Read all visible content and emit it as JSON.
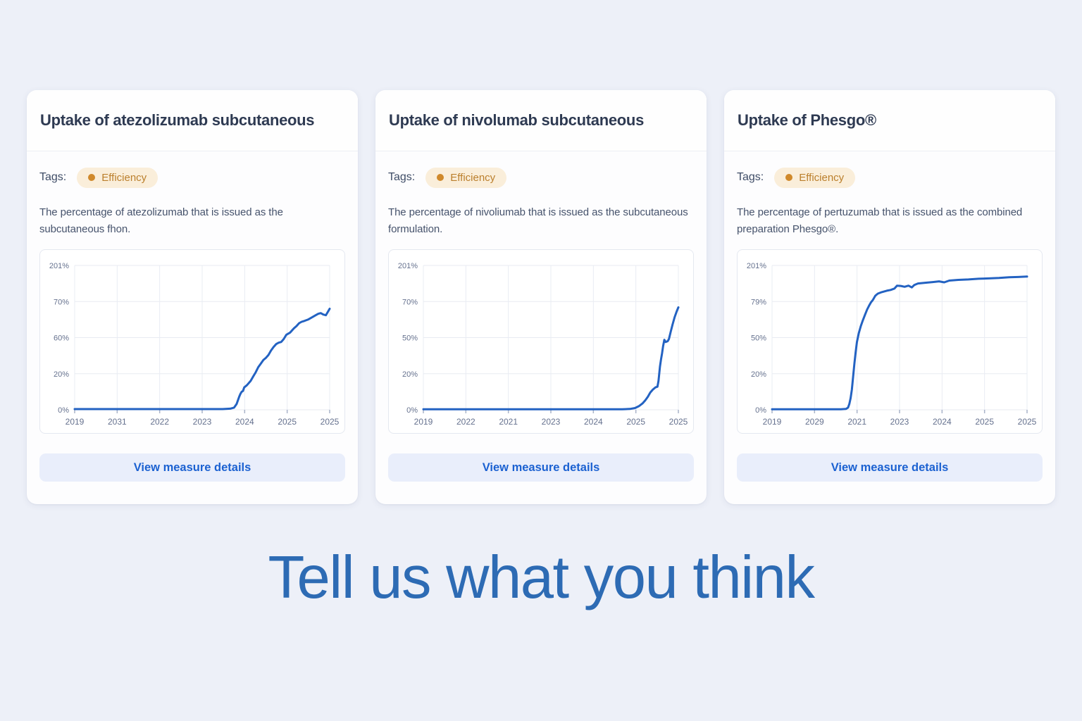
{
  "page": {
    "background": "#edf0f8",
    "headline": "Tell us what you think",
    "headline_color": "#2d6bb4"
  },
  "labels": {
    "tags": "Tags:"
  },
  "cards": [
    {
      "title": "Uptake of atezolizumab subcutaneous",
      "tag": "Efficiency",
      "tag_dot_color": "#d0892b",
      "description": "The percentage of atezolizumab that is issued as the subcutaneous fhon.",
      "button_label": "View measure details",
      "chart_data": {
        "type": "line",
        "series_name": "uptake-percentage",
        "line_color": "#2362c2",
        "grid": true,
        "y_tick_labels": [
          "201%",
          "70%",
          "60%",
          "20%",
          "0%"
        ],
        "x_tick_labels": [
          "2019",
          "2031",
          "2022",
          "2023",
          "2024",
          "2025",
          "2025"
        ],
        "y_axis_range_pct": [
          0,
          100
        ],
        "points_xfrac_ypct": [
          [
            0,
            0.5
          ],
          [
            0.1,
            0.5
          ],
          [
            0.2,
            0.5
          ],
          [
            0.3,
            0.5
          ],
          [
            0.4,
            0.5
          ],
          [
            0.5,
            0.5
          ],
          [
            0.58,
            0.5
          ],
          [
            0.61,
            0.8
          ],
          [
            0.625,
            1.5
          ],
          [
            0.635,
            4
          ],
          [
            0.645,
            9
          ],
          [
            0.65,
            11
          ],
          [
            0.655,
            12.5
          ],
          [
            0.66,
            13
          ],
          [
            0.665,
            15.5
          ],
          [
            0.675,
            17
          ],
          [
            0.69,
            20
          ],
          [
            0.7,
            23
          ],
          [
            0.71,
            26
          ],
          [
            0.72,
            29.5
          ],
          [
            0.73,
            32
          ],
          [
            0.74,
            34.5
          ],
          [
            0.75,
            36
          ],
          [
            0.76,
            38
          ],
          [
            0.77,
            41
          ],
          [
            0.78,
            43.5
          ],
          [
            0.79,
            45.5
          ],
          [
            0.8,
            46.5
          ],
          [
            0.81,
            47
          ],
          [
            0.82,
            49
          ],
          [
            0.83,
            52
          ],
          [
            0.845,
            53.5
          ],
          [
            0.86,
            56.5
          ],
          [
            0.87,
            58
          ],
          [
            0.88,
            60
          ],
          [
            0.89,
            61
          ],
          [
            0.9,
            61.5
          ],
          [
            0.915,
            62.5
          ],
          [
            0.93,
            64
          ],
          [
            0.945,
            65.5
          ],
          [
            0.955,
            66.5
          ],
          [
            0.965,
            67
          ],
          [
            0.975,
            66
          ],
          [
            0.985,
            65.5
          ],
          [
            1,
            70
          ]
        ]
      }
    },
    {
      "title": "Uptake of nivolumab subcutaneous",
      "tag": "Efficiency",
      "tag_dot_color": "#d0892b",
      "description": "The percentage of nivoliumab that is issued as the subcutaneous formulation.",
      "button_label": "View measure details",
      "chart_data": {
        "type": "line",
        "series_name": "uptake-percentage",
        "line_color": "#2362c2",
        "grid": true,
        "y_tick_labels": [
          "201%",
          "70%",
          "50%",
          "20%",
          "0%"
        ],
        "x_tick_labels": [
          "2019",
          "2022",
          "2021",
          "2023",
          "2024",
          "2025",
          "2025"
        ],
        "y_axis_range_pct": [
          0,
          100
        ],
        "points_xfrac_ypct": [
          [
            0,
            0.4
          ],
          [
            0.15,
            0.4
          ],
          [
            0.3,
            0.4
          ],
          [
            0.45,
            0.4
          ],
          [
            0.6,
            0.4
          ],
          [
            0.7,
            0.4
          ],
          [
            0.78,
            0.4
          ],
          [
            0.81,
            0.6
          ],
          [
            0.83,
            1.2
          ],
          [
            0.845,
            2.5
          ],
          [
            0.86,
            4.5
          ],
          [
            0.87,
            6.5
          ],
          [
            0.88,
            9
          ],
          [
            0.89,
            12
          ],
          [
            0.9,
            14
          ],
          [
            0.91,
            15.5
          ],
          [
            0.918,
            16
          ],
          [
            0.922,
            20
          ],
          [
            0.928,
            30
          ],
          [
            0.932,
            35
          ],
          [
            0.936,
            39
          ],
          [
            0.94,
            44
          ],
          [
            0.945,
            48.5
          ],
          [
            0.95,
            47
          ],
          [
            0.958,
            47.5
          ],
          [
            0.963,
            49
          ],
          [
            0.97,
            54
          ],
          [
            0.977,
            59
          ],
          [
            0.985,
            64
          ],
          [
            0.993,
            68
          ],
          [
            1,
            71
          ]
        ]
      }
    },
    {
      "title": "Uptake of Phesgo®",
      "tag": "Efficiency",
      "tag_dot_color": "#d0892b",
      "description": "The percentage of pertuzumab that is issued as the combined preparation Phesgo®.",
      "button_label": "View measure details",
      "chart_data": {
        "type": "line",
        "series_name": "uptake-percentage",
        "line_color": "#2362c2",
        "grid": true,
        "y_tick_labels": [
          "201%",
          "79%",
          "50%",
          "20%",
          "0%"
        ],
        "x_tick_labels": [
          "2019",
          "2029",
          "2021",
          "2023",
          "2024",
          "2025",
          "2025"
        ],
        "y_axis_range_pct": [
          0,
          100
        ],
        "points_xfrac_ypct": [
          [
            0,
            0.4
          ],
          [
            0.1,
            0.4
          ],
          [
            0.2,
            0.4
          ],
          [
            0.27,
            0.4
          ],
          [
            0.29,
            0.6
          ],
          [
            0.298,
            1.5
          ],
          [
            0.303,
            4
          ],
          [
            0.308,
            8
          ],
          [
            0.313,
            14
          ],
          [
            0.318,
            23
          ],
          [
            0.323,
            32
          ],
          [
            0.328,
            40
          ],
          [
            0.333,
            47
          ],
          [
            0.34,
            53
          ],
          [
            0.348,
            58
          ],
          [
            0.356,
            62
          ],
          [
            0.365,
            66
          ],
          [
            0.373,
            69.5
          ],
          [
            0.38,
            72
          ],
          [
            0.388,
            74.5
          ],
          [
            0.395,
            76
          ],
          [
            0.405,
            79
          ],
          [
            0.415,
            80.5
          ],
          [
            0.43,
            81.5
          ],
          [
            0.45,
            82.5
          ],
          [
            0.465,
            83
          ],
          [
            0.48,
            84
          ],
          [
            0.49,
            86
          ],
          [
            0.505,
            85.8
          ],
          [
            0.52,
            85.2
          ],
          [
            0.535,
            86
          ],
          [
            0.548,
            84.8
          ],
          [
            0.558,
            86.5
          ],
          [
            0.572,
            87.5
          ],
          [
            0.6,
            88
          ],
          [
            0.63,
            88.5
          ],
          [
            0.655,
            89
          ],
          [
            0.675,
            88.3
          ],
          [
            0.695,
            89.5
          ],
          [
            0.73,
            90
          ],
          [
            0.77,
            90.3
          ],
          [
            0.81,
            90.8
          ],
          [
            0.85,
            91
          ],
          [
            0.89,
            91.3
          ],
          [
            0.93,
            91.8
          ],
          [
            0.965,
            92
          ],
          [
            1,
            92.3
          ]
        ]
      }
    }
  ]
}
